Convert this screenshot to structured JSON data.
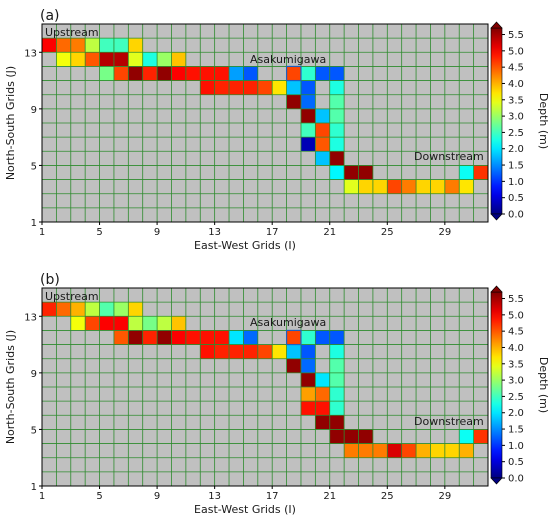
{
  "chart_data": [
    {
      "panel_label": "(a)",
      "type": "heatmap",
      "xlabel": "East-West Grids (I)",
      "ylabel": "North-South Grids (J)",
      "x_ticks": [
        1,
        5,
        9,
        13,
        17,
        21,
        25,
        29
      ],
      "y_ticks": [
        1,
        5,
        9,
        13
      ],
      "xlim": [
        1,
        31
      ],
      "ylim": [
        1,
        14
      ],
      "grid": true,
      "annotations": [
        "Upstream",
        "Asakumigawa",
        "Downstream"
      ],
      "colorbar": {
        "label": "Depth (m)",
        "ticks": [
          "0.0",
          "0.5",
          "1.0",
          "1.5",
          "2.0",
          "2.5",
          "3.0",
          "3.5",
          "4.0",
          "4.5",
          "5.0",
          "5.5"
        ],
        "range": [
          0,
          5.7
        ]
      },
      "cells": [
        [
          1,
          13,
          5.0
        ],
        [
          2,
          13,
          4.4
        ],
        [
          3,
          13,
          4.3
        ],
        [
          4,
          13,
          3.2
        ],
        [
          5,
          13,
          2.5
        ],
        [
          6,
          13,
          2.5
        ],
        [
          7,
          13,
          3.8
        ],
        [
          2,
          12,
          3.5
        ],
        [
          3,
          12,
          3.8
        ],
        [
          4,
          12,
          4.5
        ],
        [
          5,
          12,
          5.4
        ],
        [
          6,
          12,
          5.4
        ],
        [
          7,
          12,
          3.4
        ],
        [
          8,
          12,
          2.3
        ],
        [
          9,
          12,
          3.0
        ],
        [
          10,
          12,
          3.9
        ],
        [
          5,
          11,
          2.8
        ],
        [
          6,
          11,
          4.6
        ],
        [
          7,
          11,
          5.6
        ],
        [
          8,
          11,
          4.8
        ],
        [
          9,
          11,
          5.6
        ],
        [
          10,
          11,
          5.0
        ],
        [
          11,
          11,
          4.9
        ],
        [
          12,
          11,
          4.9
        ],
        [
          13,
          11,
          4.9
        ],
        [
          14,
          11,
          1.6
        ],
        [
          15,
          11,
          1.2
        ],
        [
          18,
          11,
          4.6
        ],
        [
          19,
          11,
          2.4
        ],
        [
          20,
          11,
          1.2
        ],
        [
          21,
          11,
          1.2
        ],
        [
          12,
          10,
          4.9
        ],
        [
          13,
          10,
          4.8
        ],
        [
          14,
          10,
          4.8
        ],
        [
          15,
          10,
          4.8
        ],
        [
          16,
          10,
          4.6
        ],
        [
          17,
          10,
          3.7
        ],
        [
          18,
          10,
          1.8
        ],
        [
          19,
          10,
          1.2
        ],
        [
          21,
          10,
          2.3
        ],
        [
          18,
          9,
          5.6
        ],
        [
          19,
          9,
          1.3
        ],
        [
          21,
          9,
          2.6
        ],
        [
          19,
          8,
          5.6
        ],
        [
          20,
          8,
          1.8
        ],
        [
          21,
          8,
          2.6
        ],
        [
          19,
          7,
          2.5
        ],
        [
          20,
          7,
          4.6
        ],
        [
          21,
          7,
          2.4
        ],
        [
          19,
          6,
          0.3
        ],
        [
          20,
          6,
          4.5
        ],
        [
          21,
          6,
          2.3
        ],
        [
          20,
          5,
          1.8
        ],
        [
          21,
          5,
          5.6
        ],
        [
          21,
          4,
          2.1
        ],
        [
          22,
          4,
          5.6
        ],
        [
          23,
          4,
          5.6
        ],
        [
          22,
          3,
          3.4
        ],
        [
          23,
          3,
          3.8
        ],
        [
          24,
          3,
          3.8
        ],
        [
          25,
          3,
          4.6
        ],
        [
          26,
          3,
          4.3
        ],
        [
          27,
          3,
          3.8
        ],
        [
          28,
          3,
          3.8
        ],
        [
          29,
          3,
          4.3
        ],
        [
          30,
          3,
          3.7
        ],
        [
          30,
          4,
          2.2
        ],
        [
          31,
          4,
          4.7
        ]
      ]
    },
    {
      "panel_label": "(b)",
      "type": "heatmap",
      "xlabel": "East-West Grids (I)",
      "ylabel": "North-South Grids (J)",
      "x_ticks": [
        1,
        5,
        9,
        13,
        17,
        21,
        25,
        29
      ],
      "y_ticks": [
        1,
        5,
        9,
        13
      ],
      "xlim": [
        1,
        31
      ],
      "ylim": [
        1,
        14
      ],
      "grid": true,
      "annotations": [
        "Upstream",
        "Asakumigawa",
        "Downstream"
      ],
      "colorbar": {
        "label": "Depth (m)",
        "ticks": [
          "0.0",
          "0.5",
          "1.0",
          "1.5",
          "2.0",
          "2.5",
          "3.0",
          "3.5",
          "4.0",
          "4.5",
          "5.0",
          "5.5"
        ],
        "range": [
          0,
          5.7
        ]
      },
      "cells": [
        [
          1,
          13,
          4.8
        ],
        [
          2,
          13,
          4.4
        ],
        [
          3,
          13,
          4.0
        ],
        [
          4,
          13,
          3.2
        ],
        [
          5,
          13,
          2.6
        ],
        [
          6,
          13,
          3.0
        ],
        [
          7,
          13,
          3.8
        ],
        [
          3,
          12,
          3.5
        ],
        [
          4,
          12,
          4.6
        ],
        [
          5,
          12,
          5.0
        ],
        [
          6,
          12,
          5.0
        ],
        [
          7,
          12,
          3.2
        ],
        [
          8,
          12,
          2.8
        ],
        [
          9,
          12,
          3.2
        ],
        [
          10,
          12,
          3.9
        ],
        [
          6,
          11,
          4.5
        ],
        [
          7,
          11,
          5.6
        ],
        [
          8,
          11,
          4.8
        ],
        [
          9,
          11,
          5.6
        ],
        [
          10,
          11,
          5.0
        ],
        [
          11,
          11,
          4.9
        ],
        [
          12,
          11,
          4.9
        ],
        [
          13,
          11,
          4.9
        ],
        [
          14,
          11,
          2.0
        ],
        [
          15,
          11,
          1.3
        ],
        [
          18,
          11,
          4.6
        ],
        [
          19,
          11,
          2.4
        ],
        [
          20,
          11,
          1.2
        ],
        [
          21,
          11,
          1.2
        ],
        [
          12,
          10,
          4.9
        ],
        [
          13,
          10,
          4.8
        ],
        [
          14,
          10,
          4.8
        ],
        [
          15,
          10,
          4.8
        ],
        [
          16,
          10,
          4.6
        ],
        [
          17,
          10,
          3.7
        ],
        [
          18,
          10,
          1.8
        ],
        [
          19,
          10,
          1.2
        ],
        [
          21,
          10,
          2.3
        ],
        [
          18,
          9,
          5.6
        ],
        [
          19,
          9,
          1.3
        ],
        [
          21,
          9,
          2.6
        ],
        [
          19,
          8,
          5.6
        ],
        [
          20,
          8,
          2.0
        ],
        [
          21,
          8,
          2.6
        ],
        [
          19,
          7,
          4.1
        ],
        [
          20,
          7,
          4.4
        ],
        [
          21,
          7,
          2.4
        ],
        [
          19,
          6,
          4.9
        ],
        [
          20,
          6,
          4.9
        ],
        [
          21,
          6,
          2.4
        ],
        [
          20,
          5,
          5.6
        ],
        [
          21,
          5,
          5.6
        ],
        [
          21,
          4,
          5.6
        ],
        [
          22,
          4,
          5.6
        ],
        [
          23,
          4,
          5.6
        ],
        [
          22,
          3,
          4.3
        ],
        [
          23,
          3,
          4.3
        ],
        [
          24,
          3,
          4.3
        ],
        [
          25,
          3,
          5.2
        ],
        [
          26,
          3,
          4.6
        ],
        [
          27,
          3,
          4.0
        ],
        [
          28,
          3,
          3.8
        ],
        [
          29,
          3,
          3.8
        ],
        [
          30,
          3,
          4.0
        ],
        [
          30,
          4,
          2.2
        ],
        [
          31,
          4,
          4.7
        ]
      ]
    }
  ]
}
